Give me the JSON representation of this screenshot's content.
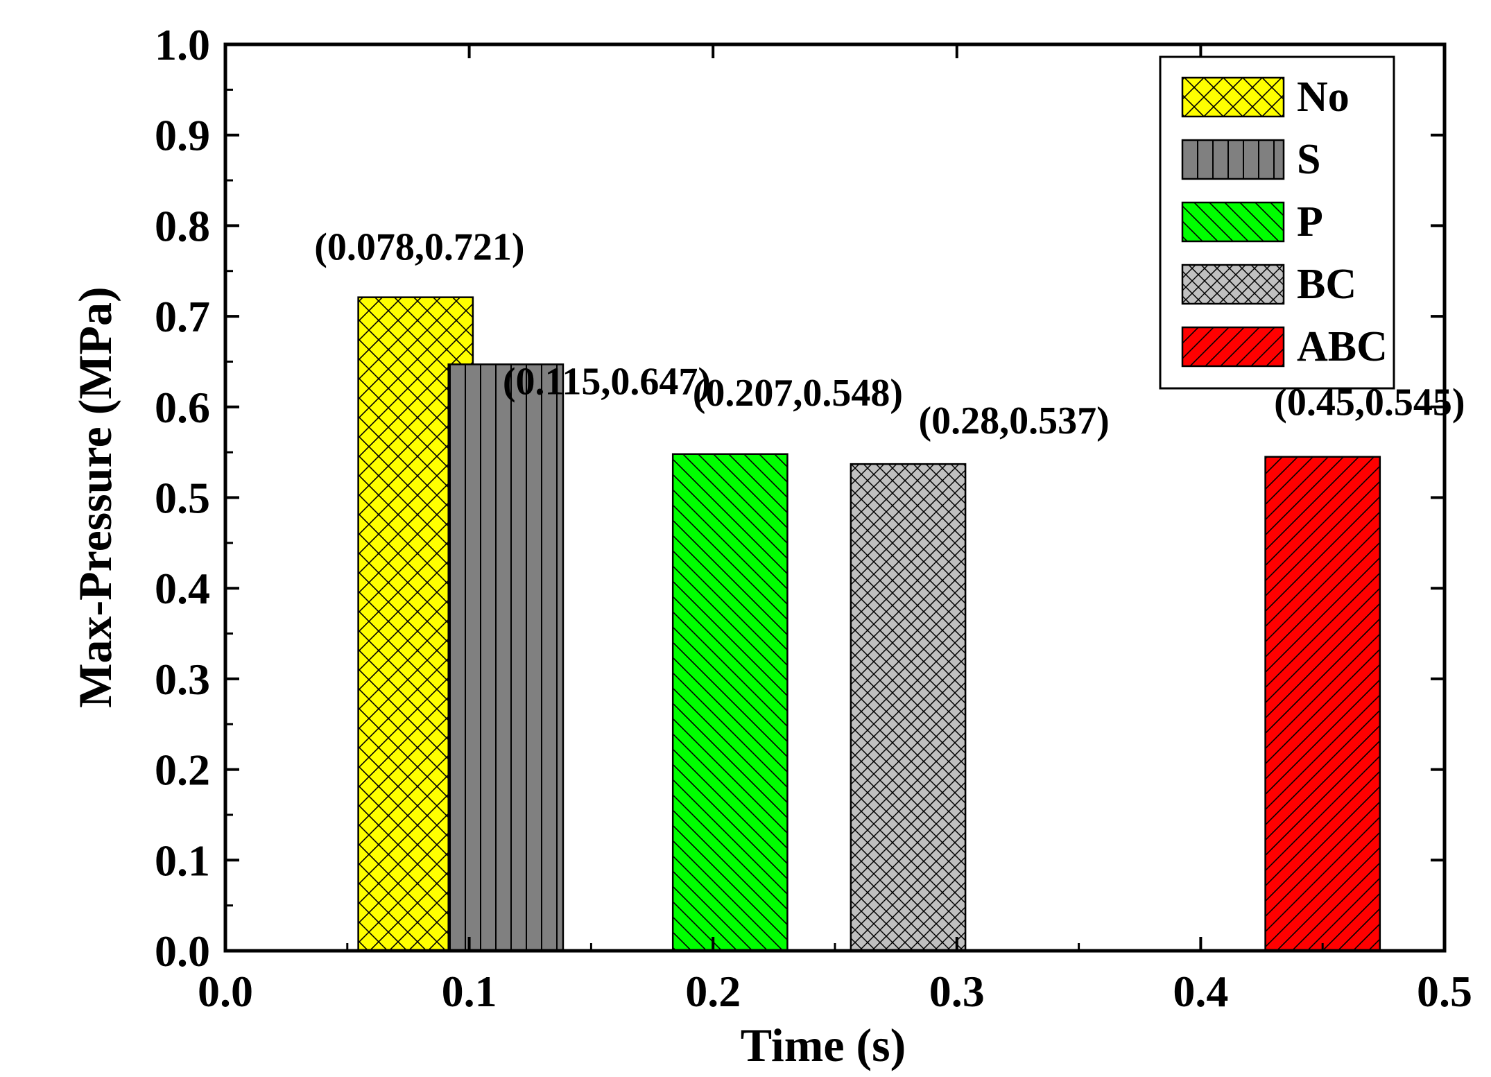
{
  "chart_data": {
    "type": "bar",
    "title": "",
    "xlabel": "Time (s)",
    "ylabel": "Max-Pressure (MPa)",
    "xlim": [
      0.0,
      0.5
    ],
    "ylim": [
      0.0,
      1.0
    ],
    "xticks": [
      "0.0",
      "0.1",
      "0.2",
      "0.3",
      "0.4",
      "0.5"
    ],
    "yticks": [
      "0.0",
      "0.1",
      "0.2",
      "0.3",
      "0.4",
      "0.5",
      "0.6",
      "0.7",
      "0.8",
      "0.9",
      "1.0"
    ],
    "bar_width": 0.047,
    "grid": false,
    "legend_position": "top-right",
    "series": [
      {
        "name": "No",
        "x": 0.078,
        "value": 0.721,
        "label": "(0.078,0.721)",
        "color": "#ffff00",
        "pattern": "crosshatch"
      },
      {
        "name": "S",
        "x": 0.115,
        "value": 0.647,
        "label": "(0.115,0.647)",
        "color": "#808080",
        "pattern": "vertical"
      },
      {
        "name": "P",
        "x": 0.207,
        "value": 0.548,
        "label": "(0.207,0.548)",
        "color": "#00ff00",
        "pattern": "diagonal-down"
      },
      {
        "name": "BC",
        "x": 0.28,
        "value": 0.537,
        "label": "(0.28,0.537)",
        "color": "#c0c0c0",
        "pattern": "dense-crosshatch"
      },
      {
        "name": "ABC",
        "x": 0.45,
        "value": 0.545,
        "label": "(0.45,0.545)",
        "color": "#ff0000",
        "pattern": "diagonal-up"
      }
    ]
  }
}
